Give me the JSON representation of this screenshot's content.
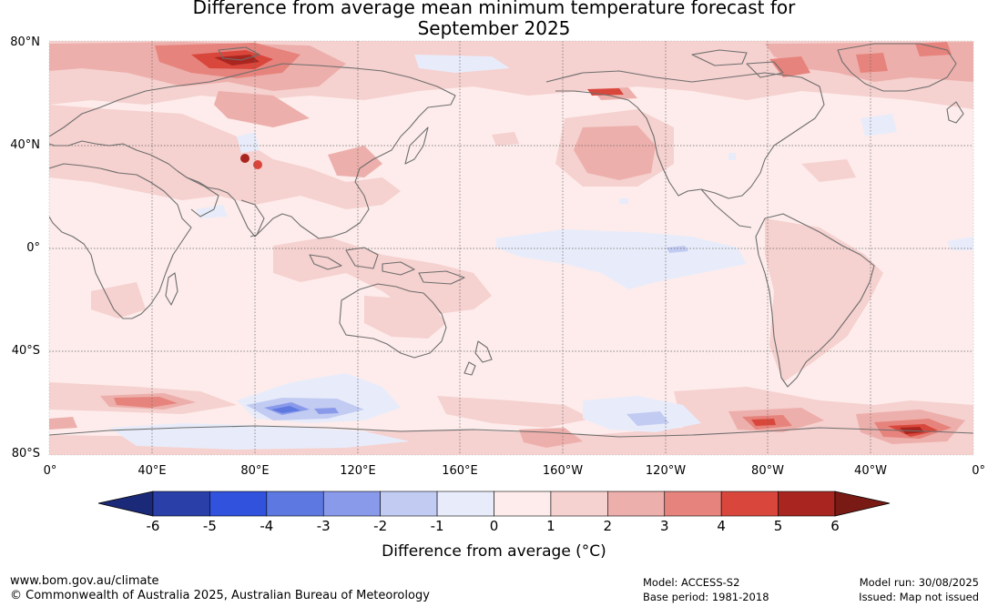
{
  "title_line1": "Difference from average mean minimum temperature forecast for",
  "title_line2": "September 2025",
  "lat_labels": [
    "80°N",
    "40°N",
    "0°",
    "40°S",
    "80°S"
  ],
  "lon_labels": [
    "0°",
    "40°E",
    "80°E",
    "120°E",
    "160°E",
    "160°W",
    "120°W",
    "80°W",
    "40°W",
    "0°"
  ],
  "colorbar": {
    "ticks": [
      "-6",
      "-5",
      "-4",
      "-3",
      "-2",
      "-1",
      "0",
      "1",
      "2",
      "3",
      "4",
      "5",
      "6"
    ],
    "colors": [
      "#2a3fa8",
      "#3152dc",
      "#5d78e0",
      "#8a9aea",
      "#c2cbf2",
      "#e8ecfa",
      "#fdeceb",
      "#f5d1cf",
      "#edafab",
      "#e6837c",
      "#d9473c",
      "#a8261f"
    ],
    "low_extend_color": "#1b2a78",
    "high_extend_color": "#7a1a14",
    "label": "Difference from average (°C)"
  },
  "colors": {
    "ocean_base": "#fdeceb",
    "coastline": "#6e6e6e",
    "grid": "#666666"
  },
  "footer": {
    "url": "www.bom.gov.au/climate",
    "copyright": "© Commonwealth of Australia 2025, Australian Bureau of Meteorology",
    "model": "Model: ACCESS-S2",
    "base_period": "Base period: 1981-2018",
    "model_run": "Model run: 30/08/2025",
    "issued": "Issued: Map not issued"
  }
}
